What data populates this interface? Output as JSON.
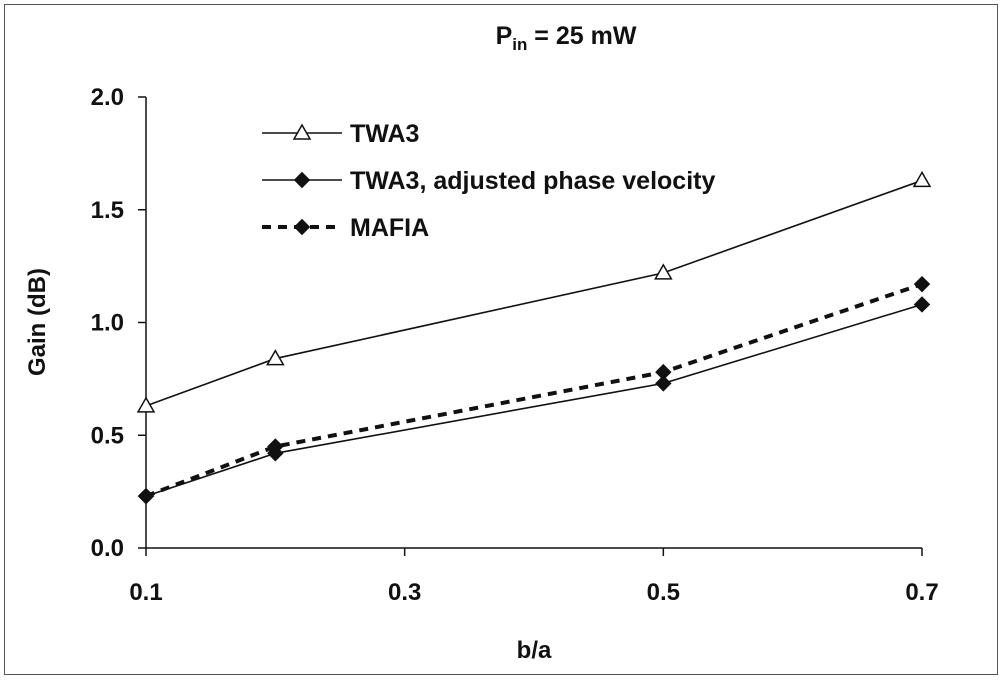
{
  "chart_data": {
    "type": "line",
    "title": {
      "main": "P",
      "sub": "in",
      "rest": " = 25 mW"
    },
    "xlabel": "b/a",
    "ylabel": "Gain (dB)",
    "x": [
      0.1,
      0.2,
      0.5,
      0.7
    ],
    "xlim": [
      0.1,
      0.7
    ],
    "ylim": [
      0.0,
      2.0
    ],
    "xticks": [
      "0.1",
      "0.3",
      "0.5",
      "0.7"
    ],
    "yticks": [
      "0.0",
      "0.5",
      "1.0",
      "1.5",
      "2.0"
    ],
    "grid": false,
    "legend_position": "top-left",
    "series": [
      {
        "name": "TWA3",
        "values": [
          0.63,
          0.84,
          1.22,
          1.63
        ],
        "marker": "open-triangle",
        "line": "solid",
        "color": "#111111"
      },
      {
        "name": "TWA3, adjusted phase velocity",
        "values": [
          0.23,
          0.42,
          0.73,
          1.08
        ],
        "marker": "filled-diamond",
        "line": "solid",
        "color": "#111111"
      },
      {
        "name": "MAFIA",
        "values": [
          0.23,
          0.45,
          0.78,
          1.17
        ],
        "marker": "filled-diamond",
        "line": "dashed",
        "color": "#111111"
      }
    ]
  }
}
